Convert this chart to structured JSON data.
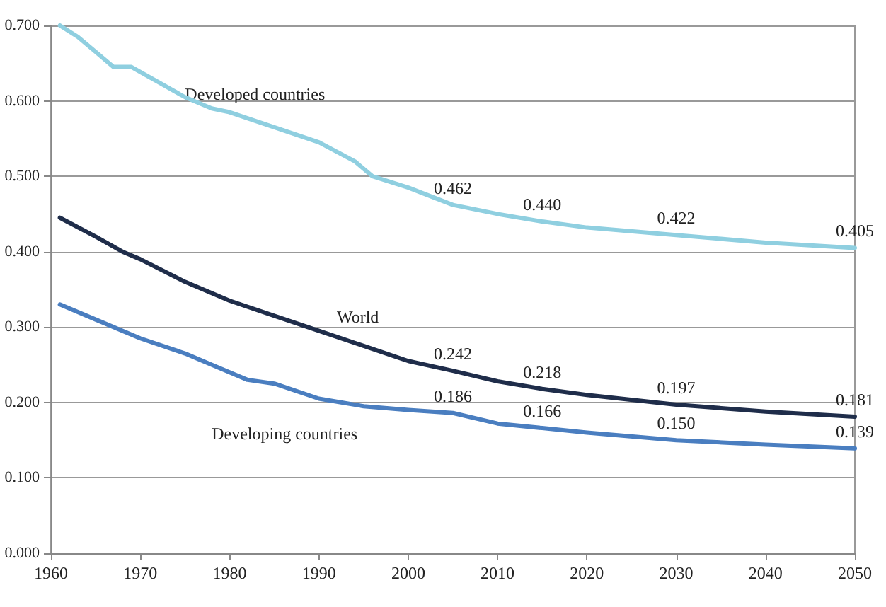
{
  "chart_data": {
    "type": "line",
    "xlim": [
      1960,
      2050
    ],
    "xticks": [
      1960,
      1970,
      1980,
      1990,
      2000,
      2010,
      2020,
      2030,
      2040,
      2050
    ],
    "ylim": [
      0,
      0.7
    ],
    "yticks": [
      {
        "value": 0,
        "label": "0.000"
      },
      {
        "value": 0.1,
        "label": "0.100"
      },
      {
        "value": 0.2,
        "label": "0.200"
      },
      {
        "value": 0.3,
        "label": "0.300"
      },
      {
        "value": 0.4,
        "label": "0.400"
      },
      {
        "value": 0.5,
        "label": "0.500"
      },
      {
        "value": 0.6,
        "label": "0.600"
      },
      {
        "value": 0.7,
        "label": "0.700"
      }
    ],
    "grid": "y",
    "legend": false,
    "marker": "none",
    "line_style": "solid",
    "series": [
      {
        "name": "Developed countries",
        "color": "#8fcfe0",
        "x": [
          1961,
          1963,
          1965,
          1967,
          1969,
          1972,
          1975,
          1978,
          1980,
          1985,
          1990,
          1994,
          1996,
          2000,
          2005,
          2010,
          2015,
          2020,
          2030,
          2040,
          2050
        ],
        "values": [
          0.7,
          0.685,
          0.665,
          0.645,
          0.645,
          0.625,
          0.605,
          0.59,
          0.585,
          0.565,
          0.545,
          0.52,
          0.5,
          0.485,
          0.462,
          0.45,
          0.44,
          0.432,
          0.422,
          0.412,
          0.405
        ],
        "value_labels": [
          null,
          null,
          null,
          null,
          null,
          null,
          null,
          null,
          null,
          null,
          null,
          null,
          null,
          null,
          "0.462",
          null,
          "0.440",
          null,
          "0.422",
          null,
          "0.405"
        ]
      },
      {
        "name": "World",
        "color": "#1f2d4a",
        "x": [
          1961,
          1965,
          1968,
          1970,
          1975,
          1980,
          1985,
          1990,
          1995,
          2000,
          2005,
          2010,
          2015,
          2020,
          2030,
          2040,
          2050
        ],
        "values": [
          0.445,
          0.42,
          0.4,
          0.39,
          0.36,
          0.335,
          0.315,
          0.295,
          0.275,
          0.255,
          0.242,
          0.228,
          0.218,
          0.21,
          0.197,
          0.188,
          0.181
        ],
        "value_labels": [
          null,
          null,
          null,
          null,
          null,
          null,
          null,
          null,
          null,
          null,
          "0.242",
          null,
          "0.218",
          null,
          "0.197",
          null,
          "0.181"
        ]
      },
      {
        "name": "Developing countries",
        "color": "#4a7ec0",
        "x": [
          1961,
          1965,
          1970,
          1975,
          1980,
          1982,
          1985,
          1990,
          1995,
          2000,
          2005,
          2010,
          2015,
          2020,
          2030,
          2040,
          2050
        ],
        "values": [
          0.33,
          0.31,
          0.285,
          0.265,
          0.24,
          0.23,
          0.225,
          0.205,
          0.195,
          0.19,
          0.186,
          0.172,
          0.166,
          0.16,
          0.15,
          0.144,
          0.139
        ],
        "value_labels": [
          null,
          null,
          null,
          null,
          null,
          null,
          null,
          null,
          null,
          null,
          "0.186",
          null,
          "0.166",
          null,
          "0.150",
          null,
          "0.139"
        ]
      }
    ]
  }
}
